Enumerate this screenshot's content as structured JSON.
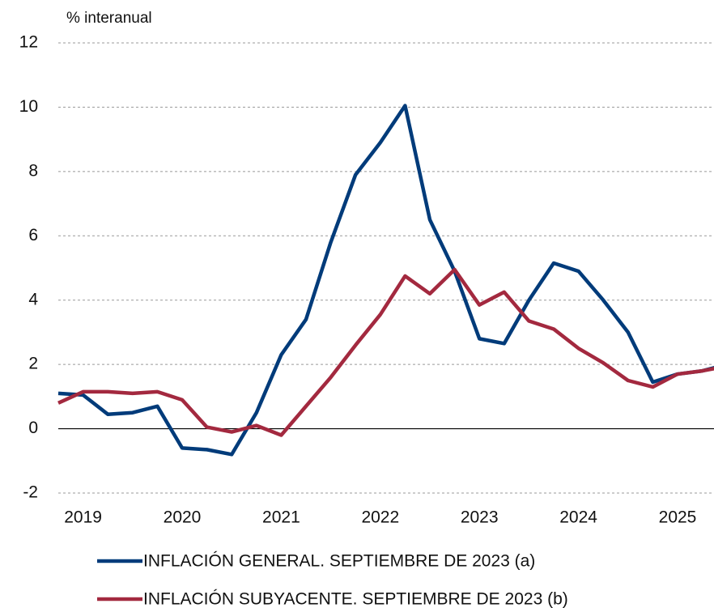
{
  "chart_data": {
    "type": "line",
    "y_axis_label": "% interanual",
    "categories": [
      null,
      "2019",
      null,
      null,
      null,
      "2020",
      null,
      null,
      null,
      "2021",
      null,
      null,
      null,
      "2022",
      null,
      null,
      null,
      "2023",
      null,
      null,
      null,
      "2024",
      null,
      null,
      null,
      "2025",
      null,
      null
    ],
    "series": [
      {
        "name": "INFLACIÓN GENERAL. SEPTIEMBRE DE 2023 (a)",
        "color": "#003b7a",
        "values": [
          1.1,
          1.05,
          0.45,
          0.5,
          0.7,
          -0.6,
          -0.65,
          -0.8,
          0.5,
          2.3,
          3.4,
          5.8,
          7.9,
          8.9,
          10.05,
          6.5,
          4.9,
          2.8,
          2.65,
          4.0,
          5.15,
          4.9,
          4.0,
          3.0,
          1.45,
          1.7,
          1.8,
          2.0
        ]
      },
      {
        "name": "INFLACIÓN SUBYACENTE. SEPTIEMBRE DE 2023 (b)",
        "color": "#a3293f",
        "values": [
          0.8,
          1.15,
          1.15,
          1.1,
          1.15,
          0.9,
          0.05,
          -0.1,
          0.1,
          -0.2,
          0.7,
          1.6,
          2.6,
          3.55,
          4.75,
          4.2,
          4.95,
          3.85,
          4.25,
          3.35,
          3.1,
          2.5,
          2.05,
          1.5,
          1.3,
          1.7,
          1.8,
          1.95
        ]
      }
    ],
    "ylim": [
      -2,
      12
    ],
    "yticks": [
      -2,
      0,
      2,
      4,
      6,
      8,
      10,
      12
    ],
    "grid": true
  }
}
